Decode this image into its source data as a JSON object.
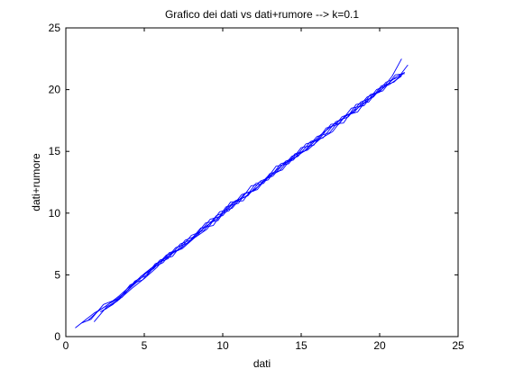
{
  "chart_data": {
    "type": "line",
    "title": "Grafico dei dati vs dati+rumore --> k=0.1",
    "xlabel": "dati",
    "ylabel": "dati+rumore",
    "xlim": [
      0,
      25
    ],
    "ylim": [
      0,
      25
    ],
    "xticks": [
      0,
      5,
      10,
      15,
      20,
      25
    ],
    "yticks": [
      0,
      5,
      10,
      15,
      20,
      25
    ],
    "grid": false,
    "legend": "none",
    "line_color": "#0000ff",
    "series": [
      {
        "x": [
          0.6,
          1.2,
          1.8,
          2.6,
          3.4,
          4.2,
          5.0,
          5.8,
          6.6,
          7.4,
          8.2,
          9.0,
          9.8,
          10.6,
          11.4,
          12.2,
          13.0,
          13.8,
          14.6,
          15.4,
          16.2,
          17.0,
          17.8,
          18.6,
          19.4,
          20.2,
          21.0,
          21.6
        ],
        "y": [
          0.7,
          1.3,
          1.9,
          2.5,
          3.3,
          4.2,
          5.1,
          5.9,
          6.6,
          7.2,
          8.1,
          9.0,
          9.7,
          10.8,
          11.3,
          12.1,
          13.0,
          13.9,
          14.5,
          15.2,
          16.3,
          17.1,
          17.8,
          18.5,
          19.3,
          20.1,
          21.0,
          21.4
        ]
      },
      {
        "x": [
          1.4,
          2.0,
          2.8,
          3.6,
          4.4,
          5.2,
          6.0,
          6.8,
          7.6,
          8.4,
          9.2,
          10.0,
          10.8,
          11.6,
          12.4,
          13.2,
          14.0,
          14.8,
          15.6,
          16.4,
          17.2,
          18.0,
          18.8,
          19.6,
          20.4,
          21.2,
          21.8
        ],
        "y": [
          1.3,
          2.0,
          2.7,
          3.2,
          4.5,
          5.0,
          6.2,
          6.5,
          7.8,
          8.2,
          9.5,
          9.8,
          11.0,
          11.4,
          12.6,
          13.0,
          14.2,
          14.6,
          15.8,
          16.1,
          17.4,
          17.8,
          19.0,
          19.4,
          20.6,
          21.0,
          22.0
        ]
      },
      {
        "x": [
          1.0,
          1.6,
          2.4,
          3.2,
          4.0,
          4.8,
          5.6,
          6.4,
          7.2,
          8.0,
          8.8,
          9.6,
          10.4,
          11.2,
          12.0,
          12.8,
          13.6,
          14.4,
          15.2,
          16.0,
          16.8,
          17.6,
          18.4,
          19.2,
          20.0,
          20.8,
          21.4
        ],
        "y": [
          1.1,
          1.4,
          2.6,
          3.0,
          3.8,
          4.9,
          5.5,
          6.6,
          7.0,
          8.2,
          8.6,
          9.8,
          10.2,
          11.5,
          11.8,
          12.9,
          13.4,
          14.6,
          15.0,
          16.2,
          16.5,
          17.8,
          18.2,
          19.4,
          19.8,
          21.1,
          22.5
        ]
      },
      {
        "x": [
          1.8,
          2.6,
          3.4,
          4.2,
          5.0,
          5.8,
          6.6,
          7.4,
          8.2,
          9.0,
          9.8,
          10.6,
          11.4,
          12.2,
          13.0,
          13.8,
          14.6,
          15.4,
          16.2,
          17.0,
          17.8,
          18.6,
          19.4,
          20.2,
          21.0,
          21.6
        ],
        "y": [
          1.2,
          2.4,
          3.0,
          3.9,
          4.7,
          5.6,
          6.8,
          7.1,
          8.0,
          8.7,
          10.1,
          10.4,
          11.6,
          11.9,
          13.2,
          13.5,
          14.8,
          15.1,
          16.0,
          16.6,
          17.9,
          18.2,
          19.6,
          19.9,
          21.2,
          21.3
        ]
      },
      {
        "x": [
          2.2,
          3.0,
          3.8,
          4.6,
          5.4,
          6.2,
          7.0,
          7.8,
          8.6,
          9.4,
          10.2,
          11.0,
          11.8,
          12.6,
          13.4,
          14.2,
          15.0,
          15.8,
          16.6,
          17.4,
          18.2,
          19.0,
          19.8,
          20.6,
          21.4
        ],
        "y": [
          2.0,
          2.6,
          3.6,
          4.5,
          5.5,
          6.0,
          7.2,
          7.6,
          8.8,
          9.0,
          10.5,
          10.8,
          12.2,
          12.4,
          13.8,
          14.0,
          15.3,
          15.5,
          16.9,
          17.2,
          18.5,
          18.7,
          20.0,
          20.4,
          21.1
        ]
      },
      {
        "x": [
          2.5,
          3.3,
          4.1,
          4.9,
          5.7,
          6.5,
          7.3,
          8.1,
          8.9,
          9.7,
          10.5,
          11.3,
          12.1,
          12.9,
          13.7,
          14.5,
          15.3,
          16.1,
          16.9,
          17.7,
          18.5,
          19.3,
          20.1,
          20.9,
          21.5
        ],
        "y": [
          2.2,
          2.9,
          4.2,
          4.6,
          5.9,
          6.3,
          7.5,
          7.9,
          9.2,
          9.4,
          10.9,
          11.0,
          12.4,
          12.7,
          14.0,
          14.3,
          15.6,
          15.9,
          17.2,
          17.3,
          18.8,
          19.0,
          20.3,
          20.6,
          21.3
        ]
      }
    ]
  }
}
